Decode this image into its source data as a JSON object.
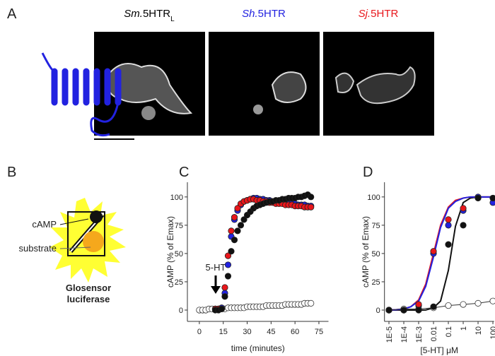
{
  "panel_labels": [
    "A",
    "B",
    "C",
    "D"
  ],
  "micrographs": [
    {
      "species": "Sm.",
      "gene": "5HTR",
      "subscript": "L",
      "color": "#000000"
    },
    {
      "species": "Sh.",
      "gene": "5HTR",
      "color": "#2222e0"
    },
    {
      "species": "Sj.",
      "gene": "5HTR",
      "color": "#e8161b"
    }
  ],
  "diagram": {
    "camp": "cAMP",
    "substrate": "substrate",
    "name_line1": "Glosensor",
    "name_line2": "luciferase"
  },
  "chart_data": [
    {
      "type": "scatter",
      "x_label": "time (minutes)",
      "y_label": "cAMP (% of Emax)",
      "annotation": "5-HT",
      "xlim": [
        -7.5,
        81
      ],
      "xticks": [
        0,
        15,
        30,
        45,
        60,
        75
      ],
      "ylim": [
        -10,
        113
      ],
      "yticks": [
        0,
        25,
        50,
        75,
        100
      ],
      "series": [
        {
          "color": "#111111",
          "marker": "filled",
          "x": [
            10,
            12,
            14,
            16,
            18,
            20,
            22,
            24,
            26,
            28,
            30,
            32,
            34,
            36,
            38,
            40,
            42,
            44,
            46,
            48,
            50,
            52,
            54,
            56,
            58,
            60,
            62,
            64,
            66,
            68,
            70
          ],
          "values": [
            0,
            0,
            1,
            12,
            30,
            52,
            62,
            70,
            75,
            80,
            84,
            87,
            90,
            92,
            93,
            94,
            95,
            96,
            96,
            97,
            97,
            98,
            98,
            99,
            99,
            99,
            100,
            100,
            101,
            102,
            100
          ]
        },
        {
          "color": "#e8161b",
          "marker": "filled",
          "x": [
            10,
            12,
            14,
            16,
            18,
            20,
            22,
            24,
            26,
            28,
            30,
            32,
            34,
            36,
            38,
            40,
            42,
            44,
            46,
            48,
            50,
            52,
            54,
            56,
            58,
            60,
            62,
            64,
            66,
            68,
            70
          ],
          "values": [
            1,
            1,
            1,
            20,
            48,
            70,
            82,
            90,
            94,
            96,
            97,
            98,
            98,
            97,
            97,
            96,
            96,
            95,
            95,
            94,
            94,
            94,
            93,
            93,
            93,
            92,
            92,
            92,
            91,
            91,
            91
          ]
        },
        {
          "color": "#2222e0",
          "marker": "filled",
          "x": [
            10,
            12,
            14,
            16,
            18,
            20,
            22,
            24,
            26,
            28,
            30,
            32,
            34,
            36,
            38,
            40,
            42,
            44,
            46,
            48,
            50,
            52,
            54,
            56,
            58,
            60,
            62,
            64,
            66,
            68,
            70
          ],
          "values": [
            1,
            1,
            2,
            15,
            40,
            65,
            80,
            88,
            93,
            96,
            97,
            98,
            99,
            99,
            98,
            98,
            97,
            97,
            96,
            96,
            95,
            95,
            95,
            94,
            94,
            94,
            93,
            93,
            93,
            92,
            92
          ]
        },
        {
          "color": "#333333",
          "marker": "open",
          "x": [
            0,
            2,
            4,
            6,
            8,
            10,
            12,
            14,
            16,
            18,
            20,
            22,
            24,
            26,
            28,
            30,
            32,
            34,
            36,
            38,
            40,
            42,
            44,
            46,
            48,
            50,
            52,
            54,
            56,
            58,
            60,
            62,
            64,
            66,
            68,
            70
          ],
          "values": [
            0,
            0,
            0,
            1,
            1,
            1,
            1,
            1,
            1,
            2,
            2,
            2,
            2,
            2,
            2,
            3,
            3,
            3,
            3,
            3,
            3,
            4,
            4,
            4,
            4,
            4,
            4,
            5,
            5,
            5,
            5,
            5,
            5,
            6,
            6,
            6
          ]
        }
      ]
    },
    {
      "type": "scatter",
      "x_label": "[5-HT] μM",
      "y_label": "cAMP (% of Emax)",
      "xscale": "log",
      "xlim": [
        5e-06,
        120
      ],
      "xticks": [
        {
          "value": 1e-05,
          "label": "1E-5"
        },
        {
          "value": 0.0001,
          "label": "1E-4"
        },
        {
          "value": 0.001,
          "label": "1E-3"
        },
        0.01,
        0.1,
        1,
        10,
        100
      ],
      "ylim": [
        -10,
        113
      ],
      "yticks": [
        0,
        25,
        50,
        75,
        100
      ],
      "x": [
        1e-05,
        0.0001,
        0.001,
        0.01,
        0.1,
        1,
        10,
        100
      ],
      "curve_x": [
        1e-05,
        3e-05,
        0.0001,
        0.0003,
        0.001,
        0.003,
        0.01,
        0.03,
        0.1,
        0.3,
        1,
        3,
        10,
        30,
        100
      ],
      "series": [
        {
          "color": "#111111",
          "marker": "filled",
          "values": [
            0,
            0,
            0,
            3,
            58,
            75,
            99,
            99
          ],
          "curve_values": [
            0,
            0,
            0,
            0,
            0,
            0.1,
            2,
            8,
            35,
            74,
            95,
            99,
            100,
            100,
            100
          ]
        },
        {
          "color": "#e8161b",
          "marker": "filled",
          "values": [
            0,
            0,
            5,
            52,
            80,
            90,
            99,
            99
          ],
          "curve_values": [
            0.1,
            0.3,
            1,
            3,
            9,
            23,
            50,
            75,
            91,
            97,
            99,
            100,
            100,
            100,
            100
          ]
        },
        {
          "color": "#2222e0",
          "marker": "filled",
          "values": [
            0,
            0,
            4,
            50,
            75,
            88,
            100,
            95
          ],
          "curve_values": [
            0.1,
            0.3,
            1,
            3,
            8,
            21,
            47,
            73,
            90,
            96,
            99,
            100,
            100,
            100,
            100
          ]
        },
        {
          "color": "#333333",
          "marker": "open",
          "line": true,
          "values": [
            0,
            1,
            1,
            2,
            4,
            5,
            6,
            8
          ]
        }
      ]
    }
  ]
}
